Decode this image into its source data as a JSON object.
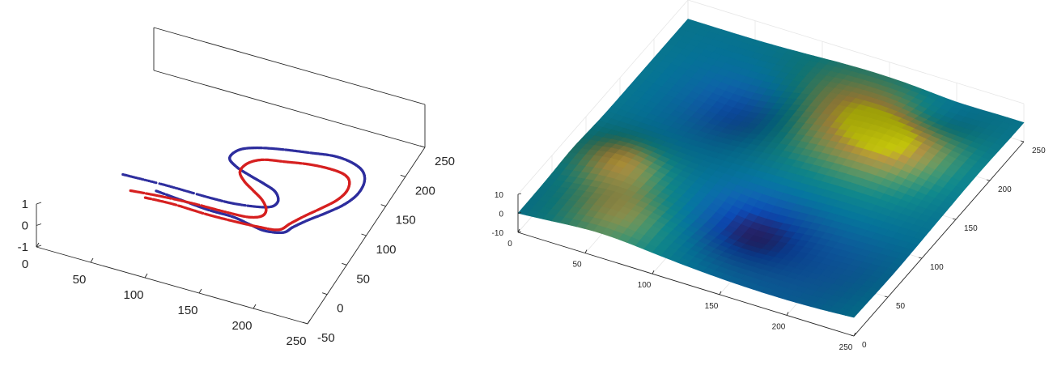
{
  "chart_data": [
    {
      "type": "scatter",
      "projection": "3d",
      "grid": false,
      "title": "",
      "xlabel": "",
      "ylabel": "",
      "zlabel": "",
      "xlim": [
        0,
        250
      ],
      "ylim": [
        -50,
        250
      ],
      "zlim": [
        -1,
        1
      ],
      "x_ticks": [
        "0",
        "50",
        "100",
        "150",
        "200",
        "250"
      ],
      "y_ticks": [
        "-50",
        "0",
        "50",
        "100",
        "150",
        "200",
        "250"
      ],
      "z_ticks": [
        "-1",
        "0",
        "1"
      ],
      "series": [
        {
          "color": "#2e2e9e",
          "points": [
            [
              40,
              58
            ],
            [
              80,
              60
            ],
            [
              120,
              60
            ],
            [
              145,
              62
            ],
            [
              170,
              70
            ],
            [
              175,
              82
            ],
            [
              168,
              95
            ],
            [
              155,
              102
            ],
            [
              140,
              108
            ],
            [
              125,
              115
            ],
            [
              115,
              125
            ],
            [
              118,
              140
            ],
            [
              130,
              150
            ],
            [
              150,
              158
            ],
            [
              175,
              165
            ],
            [
              195,
              170
            ],
            [
              212,
              168
            ],
            [
              225,
              160
            ],
            [
              232,
              145
            ],
            [
              233,
              125
            ],
            [
              228,
              105
            ],
            [
              218,
              85
            ],
            [
              208,
              68
            ],
            [
              200,
              52
            ],
            [
              195,
              40
            ],
            [
              180,
              35
            ],
            [
              165,
              38
            ],
            [
              148,
              42
            ],
            [
              125,
              42
            ],
            [
              100,
              45
            ],
            [
              75,
              48
            ]
          ]
        },
        {
          "color": "#d62020",
          "points": [
            [
              55,
              38
            ],
            [
              80,
              42
            ],
            [
              110,
              45
            ],
            [
              140,
              46
            ],
            [
              160,
              48
            ],
            [
              170,
              55
            ],
            [
              170,
              66
            ],
            [
              162,
              78
            ],
            [
              150,
              88
            ],
            [
              138,
              98
            ],
            [
              130,
              110
            ],
            [
              132,
              125
            ],
            [
              142,
              136
            ],
            [
              160,
              142
            ],
            [
              180,
              148
            ],
            [
              198,
              150
            ],
            [
              212,
              148
            ],
            [
              220,
              140
            ],
            [
              223,
              125
            ],
            [
              220,
              108
            ],
            [
              212,
              90
            ],
            [
              203,
              72
            ],
            [
              196,
              56
            ],
            [
              190,
              42
            ],
            [
              172,
              38
            ],
            [
              150,
              36
            ],
            [
              125,
              35
            ],
            [
              95,
              36
            ],
            [
              70,
              34
            ]
          ]
        }
      ]
    },
    {
      "type": "surface",
      "projection": "3d",
      "grid": true,
      "title": "",
      "xlabel": "",
      "ylabel": "",
      "zlabel": "",
      "xlim": [
        0,
        250
      ],
      "ylim": [
        0,
        250
      ],
      "zlim": [
        -10,
        10
      ],
      "x_ticks": [
        "0",
        "50",
        "100",
        "150",
        "200",
        "250"
      ],
      "y_ticks": [
        "0",
        "50",
        "100",
        "150",
        "200",
        "250"
      ],
      "z_ticks": [
        "-10",
        "0",
        "10"
      ],
      "colormap": "parula",
      "features": [
        {
          "x": 140,
          "y": 65,
          "z": -9,
          "width": 28
        },
        {
          "x": 80,
          "y": 180,
          "z": -6,
          "width": 25
        },
        {
          "x": 35,
          "y": 80,
          "z": 8,
          "width": 22
        },
        {
          "x": 190,
          "y": 185,
          "z": 7,
          "width": 30
        },
        {
          "x": 130,
          "y": 200,
          "z": 7,
          "width": 40
        },
        {
          "x": 60,
          "y": 30,
          "z": 5,
          "width": 25
        },
        {
          "x": 210,
          "y": 60,
          "z": -3,
          "width": 35
        },
        {
          "x": 200,
          "y": 225,
          "z": -4,
          "width": 20
        }
      ]
    }
  ]
}
